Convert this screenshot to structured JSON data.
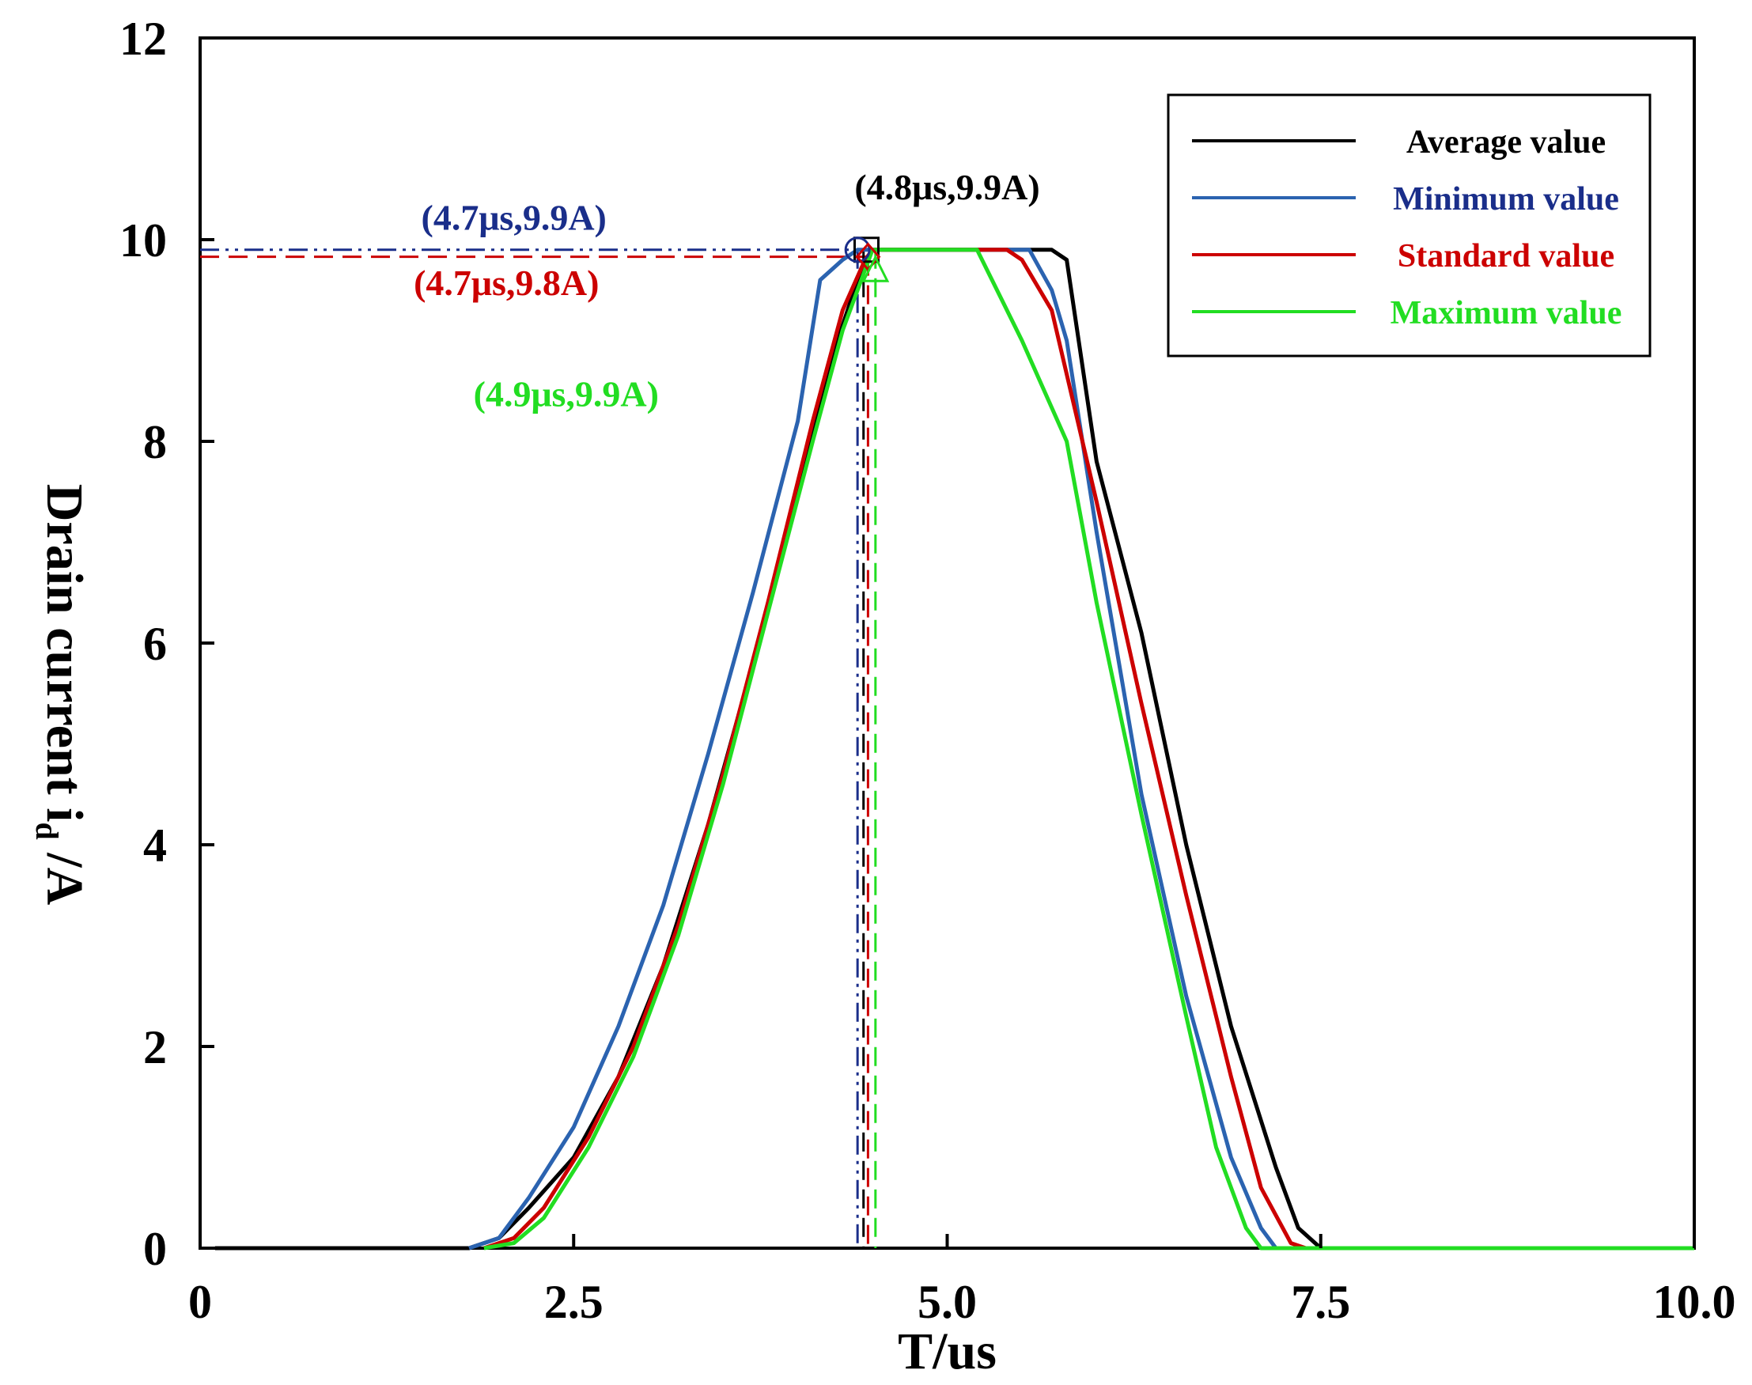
{
  "chart_data": {
    "type": "line",
    "title": "",
    "xlabel": "T/us",
    "ylabel_main": "Drain current  i",
    "ylabel_sub": "d",
    "ylabel_tail": " /A",
    "xlim": [
      0,
      10
    ],
    "ylim": [
      0,
      12
    ],
    "x_ticks": [
      0,
      2.5,
      5.0,
      7.5,
      10.0
    ],
    "x_tick_labels": [
      "0",
      "2.5",
      "5.0",
      "7.5",
      "10.0"
    ],
    "y_ticks": [
      0,
      2,
      4,
      6,
      8,
      10,
      12
    ],
    "y_tick_labels": [
      "0",
      "2",
      "4",
      "6",
      "8",
      "10",
      "12"
    ],
    "grid": false,
    "legend_position": "top-right",
    "series": [
      {
        "name": "Average value",
        "color": "#000000",
        "legend_text_color": "#000000",
        "points": [
          [
            0.1,
            0
          ],
          [
            1.8,
            0
          ],
          [
            2.0,
            0.1
          ],
          [
            2.2,
            0.4
          ],
          [
            2.5,
            0.9
          ],
          [
            2.8,
            1.7
          ],
          [
            3.1,
            2.8
          ],
          [
            3.4,
            4.2
          ],
          [
            3.7,
            5.8
          ],
          [
            4.0,
            7.5
          ],
          [
            4.2,
            8.7
          ],
          [
            4.4,
            9.6
          ],
          [
            4.5,
            9.9
          ],
          [
            5.5,
            9.9
          ],
          [
            5.7,
            9.9
          ],
          [
            5.8,
            9.8
          ],
          [
            6.0,
            7.8
          ],
          [
            6.3,
            6.1
          ],
          [
            6.6,
            4.0
          ],
          [
            6.9,
            2.2
          ],
          [
            7.2,
            0.8
          ],
          [
            7.35,
            0.2
          ],
          [
            7.5,
            0
          ],
          [
            10.0,
            0
          ]
        ]
      },
      {
        "name": "Minimum value",
        "color": "#2b63b0",
        "legend_text_color": "#1a2e8a",
        "points": [
          [
            1.8,
            0
          ],
          [
            2.0,
            0.1
          ],
          [
            2.2,
            0.5
          ],
          [
            2.5,
            1.2
          ],
          [
            2.8,
            2.2
          ],
          [
            3.1,
            3.4
          ],
          [
            3.4,
            4.9
          ],
          [
            3.7,
            6.5
          ],
          [
            4.0,
            8.2
          ],
          [
            4.15,
            9.6
          ],
          [
            4.3,
            9.8
          ],
          [
            4.4,
            9.9
          ],
          [
            5.4,
            9.9
          ],
          [
            5.55,
            9.9
          ],
          [
            5.7,
            9.5
          ],
          [
            5.8,
            9.0
          ],
          [
            6.0,
            7.1
          ],
          [
            6.3,
            4.5
          ],
          [
            6.6,
            2.5
          ],
          [
            6.9,
            0.9
          ],
          [
            7.1,
            0.2
          ],
          [
            7.2,
            0
          ],
          [
            10.0,
            0
          ]
        ]
      },
      {
        "name": "Standard value",
        "color": "#cc0000",
        "legend_text_color": "#cc0000",
        "points": [
          [
            1.9,
            0
          ],
          [
            2.1,
            0.1
          ],
          [
            2.3,
            0.4
          ],
          [
            2.6,
            1.1
          ],
          [
            2.9,
            2.0
          ],
          [
            3.2,
            3.2
          ],
          [
            3.5,
            4.7
          ],
          [
            3.8,
            6.4
          ],
          [
            4.1,
            8.2
          ],
          [
            4.3,
            9.3
          ],
          [
            4.45,
            9.8
          ],
          [
            4.5,
            9.9
          ],
          [
            5.4,
            9.9
          ],
          [
            5.5,
            9.8
          ],
          [
            5.7,
            9.3
          ],
          [
            6.0,
            7.4
          ],
          [
            6.3,
            5.4
          ],
          [
            6.6,
            3.5
          ],
          [
            6.9,
            1.7
          ],
          [
            7.1,
            0.6
          ],
          [
            7.3,
            0.05
          ],
          [
            7.4,
            0
          ],
          [
            10.0,
            0
          ]
        ]
      },
      {
        "name": "Maximum value",
        "color": "#22dd22",
        "legend_text_color": "#22dd22",
        "points": [
          [
            1.9,
            0
          ],
          [
            2.1,
            0.05
          ],
          [
            2.3,
            0.3
          ],
          [
            2.6,
            1.0
          ],
          [
            2.9,
            1.9
          ],
          [
            3.2,
            3.1
          ],
          [
            3.5,
            4.6
          ],
          [
            3.8,
            6.3
          ],
          [
            4.1,
            8.0
          ],
          [
            4.3,
            9.1
          ],
          [
            4.45,
            9.7
          ],
          [
            4.5,
            9.9
          ],
          [
            5.2,
            9.9
          ],
          [
            5.3,
            9.6
          ],
          [
            5.5,
            9.0
          ],
          [
            5.8,
            8.0
          ],
          [
            6.0,
            6.4
          ],
          [
            6.3,
            4.3
          ],
          [
            6.6,
            2.3
          ],
          [
            6.8,
            1.0
          ],
          [
            7.0,
            0.2
          ],
          [
            7.1,
            0
          ],
          [
            10.0,
            0
          ]
        ]
      }
    ],
    "reference_lines": [
      {
        "series": "Minimum value",
        "color": "#1a2e8a",
        "x": 4.4,
        "y": 9.9,
        "style": "dashdot"
      },
      {
        "series": "Standard value",
        "color": "#cc0000",
        "x": 4.47,
        "y": 9.83,
        "style": "dashed"
      },
      {
        "series": "Average value",
        "color": "#000000",
        "x": 4.44,
        "y": 9.9,
        "style": "dashed"
      },
      {
        "series": "Maximum value",
        "color": "#22dd22",
        "x": 4.52,
        "y": 9.9,
        "style": "dashed"
      }
    ],
    "markers": [
      {
        "series": "Average value",
        "shape": "square",
        "color": "#000000",
        "x": 4.46,
        "y": 9.9
      },
      {
        "series": "Minimum value",
        "shape": "circle",
        "color": "#1a2e8a",
        "x": 4.4,
        "y": 9.9
      },
      {
        "series": "Standard value",
        "shape": "diamond",
        "color": "#cc0000",
        "x": 4.47,
        "y": 9.83
      },
      {
        "series": "Maximum value",
        "shape": "triangle",
        "color": "#22dd22",
        "x": 4.52,
        "y": 9.7
      }
    ],
    "annotations": [
      {
        "text": "(4.8μs,9.9A)",
        "color": "#000000",
        "x": 5.0,
        "y": 10.4
      },
      {
        "text": "(4.7μs,9.9A)",
        "color": "#1a2e8a",
        "x": 2.1,
        "y": 10.1
      },
      {
        "text": "(4.7μs,9.8A)",
        "color": "#cc0000",
        "x": 2.05,
        "y": 9.45
      },
      {
        "text": "(4.9μs,9.9A)",
        "color": "#22dd22",
        "x": 2.45,
        "y": 8.35
      }
    ]
  }
}
